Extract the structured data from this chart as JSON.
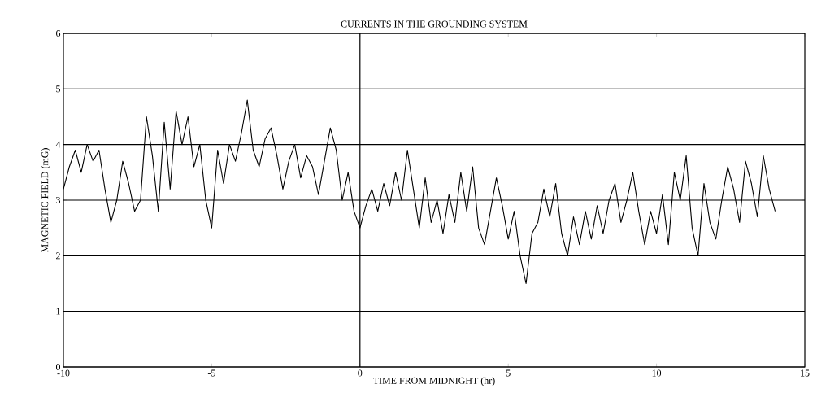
{
  "chart_data": {
    "type": "line",
    "title": "CURRENTS IN THE GROUNDING SYSTEM",
    "xlabel": "TIME FROM MIDNIGHT (hr)",
    "ylabel": "MAGNETIC FIELD (mG)",
    "xlim": [
      -10,
      15
    ],
    "ylim": [
      0,
      6
    ],
    "xticks": [
      -10,
      -5,
      0,
      5,
      10,
      15
    ],
    "yticks": [
      0,
      1,
      2,
      3,
      4,
      5,
      6
    ],
    "grid": "y",
    "color": "#000000",
    "marker": "none",
    "line_style": "solid",
    "ref_lines": [
      {
        "axis": "x",
        "value": 0,
        "color": "#000000"
      }
    ],
    "x": [
      -10.0,
      -9.8,
      -9.6,
      -9.4,
      -9.2,
      -9.0,
      -8.8,
      -8.6,
      -8.4,
      -8.2,
      -8.0,
      -7.8,
      -7.6,
      -7.4,
      -7.2,
      -7.0,
      -6.8,
      -6.6,
      -6.4,
      -6.2,
      -6.0,
      -5.8,
      -5.6,
      -5.4,
      -5.2,
      -5.0,
      -4.8,
      -4.6,
      -4.4,
      -4.2,
      -4.0,
      -3.8,
      -3.6,
      -3.4,
      -3.2,
      -3.0,
      -2.8,
      -2.6,
      -2.4,
      -2.2,
      -2.0,
      -1.8,
      -1.6,
      -1.4,
      -1.2,
      -1.0,
      -0.8,
      -0.6,
      -0.4,
      -0.2,
      0.0,
      0.2,
      0.4,
      0.6,
      0.8,
      1.0,
      1.2,
      1.4,
      1.6,
      1.8,
      2.0,
      2.2,
      2.4,
      2.6,
      2.8,
      3.0,
      3.2,
      3.4,
      3.6,
      3.8,
      4.0,
      4.2,
      4.4,
      4.6,
      4.8,
      5.0,
      5.2,
      5.4,
      5.6,
      5.8,
      6.0,
      6.2,
      6.4,
      6.6,
      6.8,
      7.0,
      7.2,
      7.4,
      7.6,
      7.8,
      8.0,
      8.2,
      8.4,
      8.6,
      8.8,
      9.0,
      9.2,
      9.4,
      9.6,
      9.8,
      10.0,
      10.2,
      10.4,
      10.6,
      10.8,
      11.0,
      11.2,
      11.4,
      11.6,
      11.8,
      12.0,
      12.2,
      12.4,
      12.6,
      12.8,
      13.0,
      13.2,
      13.4,
      13.6,
      13.8,
      14.0
    ],
    "values": [
      3.2,
      3.6,
      3.9,
      3.5,
      4.0,
      3.7,
      3.9,
      3.2,
      2.6,
      3.0,
      3.7,
      3.3,
      2.8,
      3.0,
      4.5,
      3.8,
      2.8,
      4.4,
      3.2,
      4.6,
      4.0,
      4.5,
      3.6,
      4.0,
      3.0,
      2.5,
      3.9,
      3.3,
      4.0,
      3.7,
      4.2,
      4.8,
      3.9,
      3.6,
      4.1,
      4.3,
      3.8,
      3.2,
      3.7,
      4.0,
      3.4,
      3.8,
      3.6,
      3.1,
      3.7,
      4.3,
      3.9,
      3.0,
      3.5,
      2.8,
      2.5,
      2.9,
      3.2,
      2.8,
      3.3,
      2.9,
      3.5,
      3.0,
      3.9,
      3.2,
      2.5,
      3.4,
      2.6,
      3.0,
      2.4,
      3.1,
      2.6,
      3.5,
      2.8,
      3.6,
      2.5,
      2.2,
      2.8,
      3.4,
      2.9,
      2.3,
      2.8,
      2.0,
      1.5,
      2.4,
      2.6,
      3.2,
      2.7,
      3.3,
      2.4,
      2.0,
      2.7,
      2.2,
      2.8,
      2.3,
      2.9,
      2.4,
      3.0,
      3.3,
      2.6,
      3.0,
      3.5,
      2.8,
      2.2,
      2.8,
      2.4,
      3.1,
      2.2,
      3.5,
      3.0,
      3.8,
      2.5,
      2.0,
      3.3,
      2.6,
      2.3,
      3.0,
      3.6,
      3.2,
      2.6,
      3.7,
      3.3,
      2.7,
      3.8,
      3.2,
      2.8
    ]
  }
}
